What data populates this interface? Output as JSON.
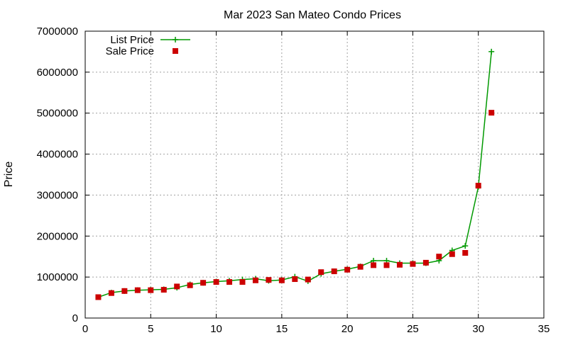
{
  "chart_data": {
    "type": "line",
    "title": "Mar 2023 San Mateo Condo Prices",
    "xlabel": "",
    "ylabel": "Price",
    "xlim": [
      0,
      35
    ],
    "ylim": [
      0,
      7000000
    ],
    "x_ticks": [
      0,
      5,
      10,
      15,
      20,
      25,
      30,
      35
    ],
    "y_ticks": [
      0,
      1000000,
      2000000,
      3000000,
      4000000,
      5000000,
      6000000,
      7000000
    ],
    "grid": true,
    "legend_position": "top-left",
    "series": [
      {
        "name": "List Price",
        "style": "line-plus",
        "color": "#009900",
        "x": [
          1,
          2,
          3,
          4,
          5,
          6,
          7,
          8,
          9,
          10,
          11,
          12,
          13,
          14,
          15,
          16,
          17,
          18,
          19,
          20,
          21,
          22,
          23,
          24,
          25,
          26,
          27,
          28,
          29,
          30,
          31
        ],
        "values": [
          510000,
          620000,
          660000,
          680000,
          690000,
          700000,
          740000,
          820000,
          860000,
          890000,
          910000,
          940000,
          960000,
          910000,
          930000,
          1010000,
          900000,
          1080000,
          1140000,
          1190000,
          1260000,
          1400000,
          1400000,
          1340000,
          1340000,
          1340000,
          1400000,
          1650000,
          1760000,
          3200000,
          6500000
        ]
      },
      {
        "name": "Sale Price",
        "style": "square-marker",
        "color": "#cc0000",
        "x": [
          1,
          2,
          3,
          4,
          5,
          6,
          7,
          8,
          9,
          10,
          11,
          12,
          13,
          14,
          15,
          16,
          17,
          18,
          19,
          20,
          21,
          22,
          23,
          24,
          25,
          26,
          27,
          28,
          29,
          30,
          31
        ],
        "values": [
          510000,
          610000,
          660000,
          680000,
          680000,
          690000,
          770000,
          800000,
          860000,
          880000,
          880000,
          880000,
          920000,
          930000,
          920000,
          950000,
          940000,
          1120000,
          1140000,
          1180000,
          1250000,
          1290000,
          1290000,
          1300000,
          1320000,
          1350000,
          1500000,
          1560000,
          1590000,
          3230000,
          5010000
        ]
      }
    ]
  }
}
